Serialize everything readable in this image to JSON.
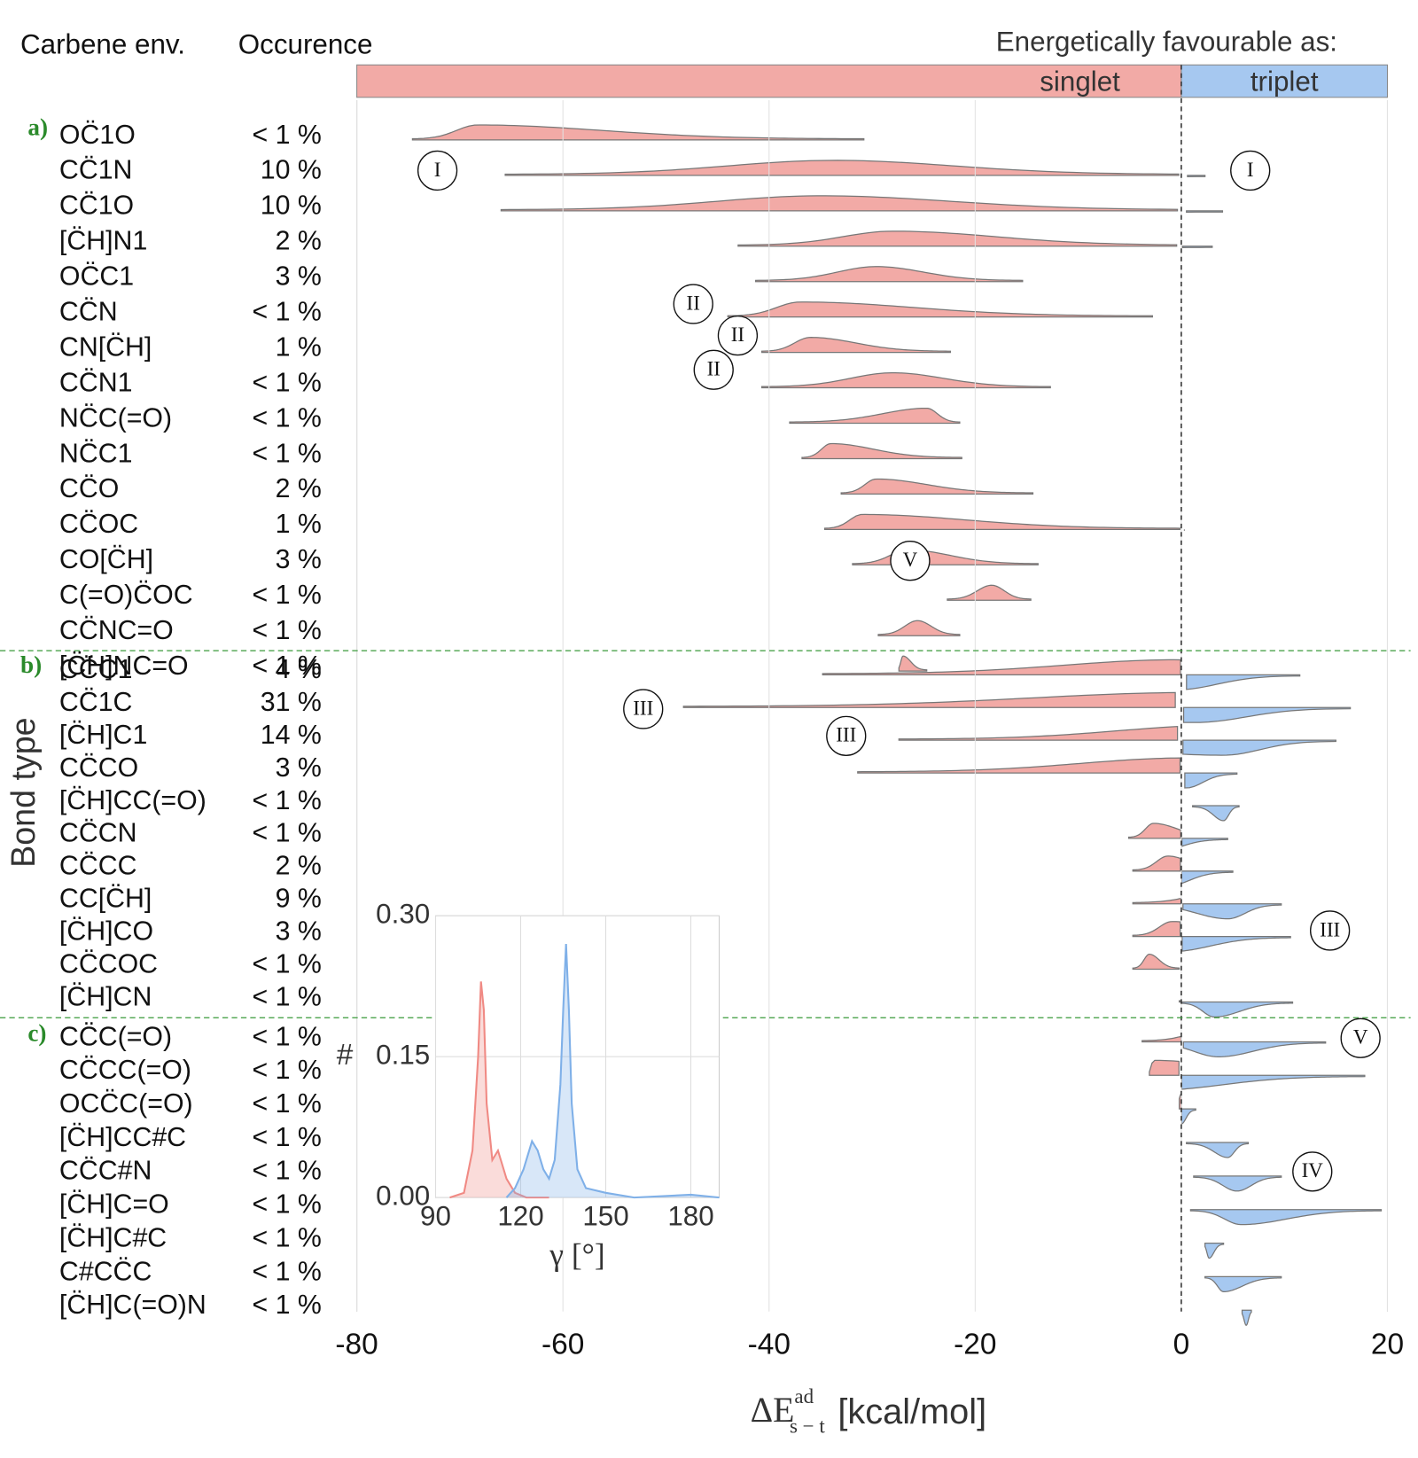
{
  "chart_data": [
    {
      "type": "ridgeline",
      "column_headers": [
        "Carbene env.",
        "Occurence"
      ],
      "legend_title": "Energetically favourable as:",
      "regions": [
        {
          "name": "singlet",
          "color": "#f2aaa6"
        },
        {
          "name": "triplet",
          "color": "#a6c8f0"
        }
      ],
      "split": 0,
      "y_label": "Bond type",
      "x_label": {
        "symbol": "ΔE",
        "superscript": "ad",
        "subscript": "s − t",
        "unit": "[kcal/mol]"
      },
      "xlim": [
        -80,
        20
      ],
      "xticks": [
        -80,
        -60,
        -40,
        -20,
        0,
        20
      ],
      "grid": true,
      "groups": [
        {
          "label": "a)",
          "rows": [
            {
              "label": "OC̈1O",
              "occurrence": "< 1 %",
              "range": [
                -74.6,
                -30.8
              ],
              "peak": -68.3
            },
            {
              "label": "CC̈1N",
              "occurrence": "10 %",
              "range": [
                -65.6,
                2.3
              ],
              "peak": -33.7
            },
            {
              "label": "CC̈1O",
              "occurrence": "10 %",
              "range": [
                -66,
                4
              ],
              "peak": -35
            },
            {
              "label": "[C̈H]N1",
              "occurrence": "2 %",
              "range": [
                -43,
                3
              ],
              "peak": -28
            },
            {
              "label": "OC̈C1",
              "occurrence": "3 %",
              "range": [
                -41.3,
                -15.4
              ],
              "peak": -29.6
            },
            {
              "label": "CC̈N",
              "occurrence": "< 1 %",
              "range": [
                -44,
                -2.8
              ],
              "peak": -37
            },
            {
              "label": "CN[C̈H]",
              "occurrence": "1 %",
              "range": [
                -40.7,
                -22.4
              ],
              "peak": -36
            },
            {
              "label": "CC̈N1",
              "occurrence": "< 1 %",
              "range": [
                -40.7,
                -12.7
              ],
              "peak": -28
            },
            {
              "label": "NC̈C(=O)",
              "occurrence": "< 1 %",
              "range": [
                -38,
                -21.5
              ],
              "peak": -24.7
            },
            {
              "label": "NC̈C1",
              "occurrence": "< 1 %",
              "range": [
                -36.8,
                -21.3
              ],
              "peak": -34
            },
            {
              "label": "CC̈O",
              "occurrence": "2 %",
              "range": [
                -33,
                -14.4
              ],
              "peak": -29.6
            },
            {
              "label": "CC̈OC",
              "occurrence": "1 %",
              "range": [
                -34.6,
                0.3
              ],
              "peak": -31
            },
            {
              "label": "CO[C̈H]",
              "occurrence": "3 %",
              "range": [
                -31.9,
                -13.9
              ],
              "peak": -26.5
            },
            {
              "label": "C(=O)C̈OC",
              "occurrence": "< 1 %",
              "range": [
                -22.7,
                -14.6
              ],
              "peak": -18.4
            },
            {
              "label": "CC̈NC=O",
              "occurrence": "< 1 %",
              "range": [
                -29.4,
                -21.5
              ],
              "peak": -25.6
            },
            {
              "label": "[C̈H]NC=O",
              "occurrence": "< 1 %",
              "range": [
                -27.4,
                -24.7
              ],
              "peak": -27
            }
          ]
        },
        {
          "label": "b)",
          "rows": [
            {
              "label": "CC̈C1",
              "occurrence": "4 %",
              "range": [
                -34.8,
                11.5
              ],
              "peak": -0.4
            },
            {
              "label": "CC̈1C",
              "occurrence": "31 %",
              "range": [
                -48.3,
                16.4
              ],
              "peak": 1.4
            },
            {
              "label": "[C̈H]C1",
              "occurrence": "14 %",
              "range": [
                -27.4,
                15
              ],
              "peak": 4.1
            },
            {
              "label": "CC̈CO",
              "occurrence": "3 %",
              "range": [
                -31.4,
                5.4
              ],
              "peak": 0.5
            },
            {
              "label": "[C̈H]CC(=O)",
              "occurrence": "< 1 %",
              "range": [
                1.1,
                5.6
              ],
              "peak": 4.1
            },
            {
              "label": "CC̈CN",
              "occurrence": "< 1 %",
              "range": [
                -5.1,
                4.5
              ],
              "peak": -2.7
            },
            {
              "label": "CC̈CC",
              "occurrence": "2 %",
              "range": [
                -4.7,
                5
              ],
              "peak": -1.3
            },
            {
              "label": "CC[C̈H]",
              "occurrence": "9 %",
              "range": [
                -4.7,
                9.7
              ],
              "peak": 4.5
            },
            {
              "label": "[C̈H]CO",
              "occurrence": "3 %",
              "range": [
                -4.7,
                10.6
              ],
              "peak": -0.9
            },
            {
              "label": "CC̈COC",
              "occurrence": "< 1 %",
              "range": [
                -4.7,
                -0.2
              ],
              "peak": -3.1
            },
            {
              "label": "[C̈H]CN",
              "occurrence": "< 1 %",
              "range": [
                -0.2,
                10.8
              ],
              "peak": 3.2
            }
          ]
        },
        {
          "label": "c)",
          "rows": [
            {
              "label": "CC̈C(=O)",
              "occurrence": "< 1 %",
              "range": [
                -3.8,
                14
              ],
              "peak": 3.6
            },
            {
              "label": "CC̈CC(=O)",
              "occurrence": "< 1 %",
              "range": [
                -3.1,
                17.8
              ],
              "peak": -2.7
            },
            {
              "label": "OCC̈C(=O)",
              "occurrence": "< 1 %",
              "range": [
                -0.2,
                1.4
              ],
              "peak": 0
            },
            {
              "label": "[C̈H]CC#C",
              "occurrence": "< 1 %",
              "range": [
                0.5,
                6.5
              ],
              "peak": 4.5
            },
            {
              "label": "CC̈C#N",
              "occurrence": "< 1 %",
              "range": [
                1.2,
                9.7
              ],
              "peak": 5.4
            },
            {
              "label": "[C̈H]C=O",
              "occurrence": "< 1 %",
              "range": [
                0.9,
                19.4
              ],
              "peak": 5.8
            },
            {
              "label": "[C̈H]C#C",
              "occurrence": "< 1 %",
              "range": [
                2.3,
                4.1
              ],
              "peak": 2.7
            },
            {
              "label": "C#CC̈C",
              "occurrence": "< 1 %",
              "range": [
                2.3,
                9.7
              ],
              "peak": 4.1
            },
            {
              "label": "[C̈H]C(=O)N",
              "occurrence": "< 1 %",
              "range": [
                5.9,
                6.8
              ],
              "peak": 6.3
            }
          ]
        }
      ],
      "annotations": [
        "I",
        "I",
        "II",
        "II",
        "II",
        "III",
        "III",
        "III",
        "V",
        "V",
        "IV"
      ]
    },
    {
      "type": "line",
      "x_label": "γ [°]",
      "y_label": "#",
      "xlim": [
        90,
        190
      ],
      "xticks": [
        90,
        120,
        150,
        180
      ],
      "ylim": [
        0,
        0.3
      ],
      "yticks": [
        {
          "value": 0,
          "label": "0.00"
        },
        {
          "value": 0.15,
          "label": "0.15"
        },
        {
          "value": 0.3,
          "label": "0.30"
        }
      ],
      "grid": true,
      "series": [
        {
          "color": "#f08a84",
          "x": [
            95,
            100,
            103,
            105,
            106,
            107,
            108,
            110,
            112,
            113,
            115,
            118,
            122,
            130
          ],
          "values": [
            0,
            0.005,
            0.05,
            0.15,
            0.23,
            0.2,
            0.1,
            0.04,
            0.05,
            0.04,
            0.02,
            0.005,
            0,
            0
          ]
        },
        {
          "color": "#7fb0e8",
          "x": [
            115,
            118,
            121,
            124,
            126,
            128,
            130,
            132,
            134,
            135,
            136,
            137,
            138,
            140,
            143,
            150,
            160,
            180,
            190
          ],
          "values": [
            0,
            0.01,
            0.03,
            0.06,
            0.05,
            0.03,
            0.02,
            0.04,
            0.12,
            0.2,
            0.27,
            0.2,
            0.1,
            0.03,
            0.01,
            0.005,
            0,
            0.003,
            0
          ]
        }
      ]
    }
  ]
}
